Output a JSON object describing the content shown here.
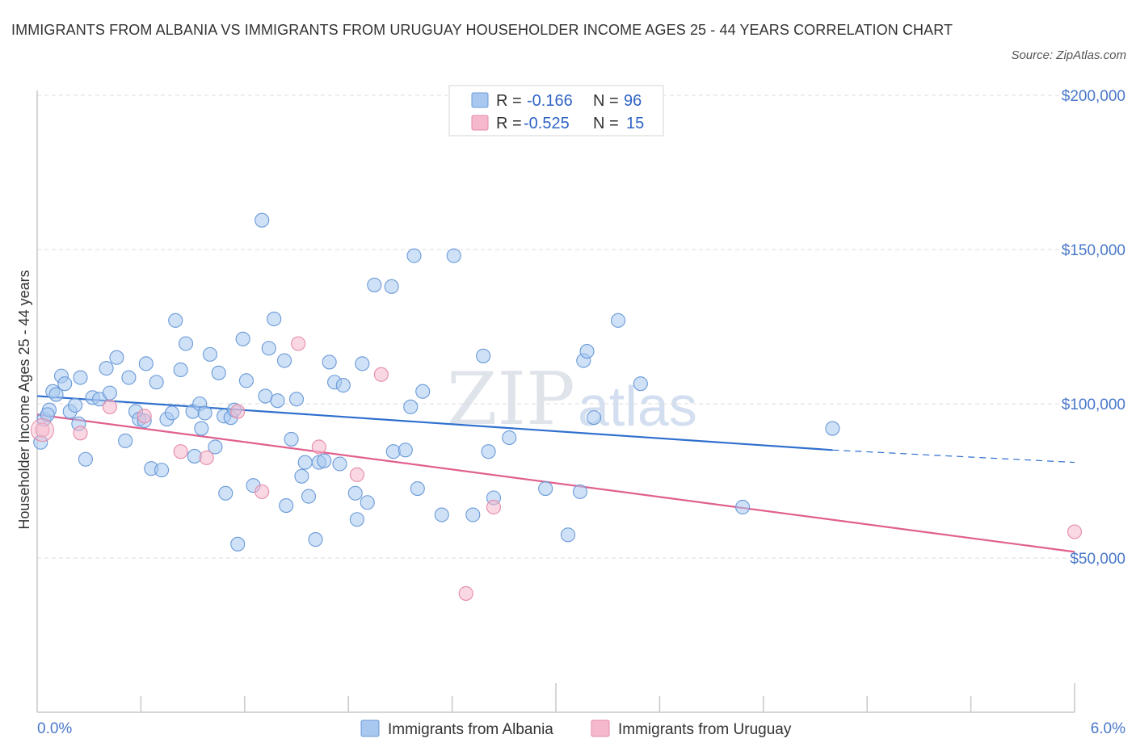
{
  "title": "IMMIGRANTS FROM ALBANIA VS IMMIGRANTS FROM URUGUAY HOUSEHOLDER INCOME AGES 25 - 44 YEARS CORRELATION CHART",
  "source": "Source: ZipAtlas.com",
  "watermark": {
    "zip": "ZIP",
    "atlas": "atlas"
  },
  "legend": {
    "rows": [
      {
        "r_label": "R =",
        "r_value": "-0.166",
        "n_label": "N =",
        "n_value": "96",
        "color": "#a8c8f0"
      },
      {
        "r_label": "R =",
        "r_value": "-0.525",
        "n_label": "N =",
        "n_value": "15",
        "color": "#f5b8cc"
      }
    ]
  },
  "chart_data": {
    "type": "scatter",
    "title": "IMMIGRANTS FROM ALBANIA VS IMMIGRANTS FROM URUGUAY HOUSEHOLDER INCOME AGES 25 - 44 YEARS CORRELATION CHART",
    "ylabel": "Householder Income Ages 25 - 44 years",
    "xlim": [
      0,
      6
    ],
    "ylim": [
      0,
      200000
    ],
    "x_tick_labels": {
      "left": "0.0%",
      "right": "6.0%"
    },
    "y_ticks": [
      {
        "value": 200000,
        "label": "$200,000"
      },
      {
        "value": 150000,
        "label": "$150,000"
      },
      {
        "value": 100000,
        "label": "$100,000"
      },
      {
        "value": 50000,
        "label": "$50,000"
      }
    ],
    "grid": true,
    "legend_position": "bottom",
    "series": [
      {
        "name": "Immigrants from Albania",
        "color": "#a8c8f0",
        "stroke": "#6a9ad8",
        "trend": {
          "x0": 0.0,
          "y0": 102500,
          "x1": 4.6,
          "y1": 85000,
          "dash_to_x": 6.0,
          "dash_to_y": 81000,
          "color": "#2f6fce"
        },
        "points": [
          [
            0.02,
            87500
          ],
          [
            0.04,
            95000
          ],
          [
            0.07,
            98000
          ],
          [
            0.09,
            104000
          ],
          [
            0.11,
            103000
          ],
          [
            0.14,
            109000
          ],
          [
            0.16,
            106500
          ],
          [
            0.19,
            97500
          ],
          [
            0.22,
            99500
          ],
          [
            0.25,
            108500
          ],
          [
            0.28,
            82000
          ],
          [
            0.32,
            102000
          ],
          [
            0.36,
            101500
          ],
          [
            0.4,
            111500
          ],
          [
            0.42,
            103500
          ],
          [
            0.46,
            115000
          ],
          [
            0.51,
            88000
          ],
          [
            0.53,
            108500
          ],
          [
            0.57,
            97500
          ],
          [
            0.59,
            95000
          ],
          [
            0.63,
            113000
          ],
          [
            0.66,
            79000
          ],
          [
            0.69,
            107000
          ],
          [
            0.72,
            78500
          ],
          [
            0.75,
            95000
          ],
          [
            0.78,
            97000
          ],
          [
            0.8,
            127000
          ],
          [
            0.83,
            111000
          ],
          [
            0.86,
            119500
          ],
          [
            0.9,
            97500
          ],
          [
            0.91,
            83000
          ],
          [
            0.94,
            100000
          ],
          [
            0.97,
            97000
          ],
          [
            1.0,
            116000
          ],
          [
            1.03,
            86000
          ],
          [
            1.05,
            110000
          ],
          [
            1.08,
            96000
          ],
          [
            1.09,
            71000
          ],
          [
            1.12,
            95500
          ],
          [
            1.14,
            98000
          ],
          [
            1.16,
            54500
          ],
          [
            1.19,
            121000
          ],
          [
            1.21,
            107500
          ],
          [
            1.25,
            73500
          ],
          [
            1.3,
            159500
          ],
          [
            1.32,
            102500
          ],
          [
            1.34,
            118000
          ],
          [
            1.37,
            127500
          ],
          [
            1.39,
            101000
          ],
          [
            1.43,
            114000
          ],
          [
            1.44,
            67000
          ],
          [
            1.47,
            88500
          ],
          [
            1.5,
            101500
          ],
          [
            1.53,
            76500
          ],
          [
            1.55,
            81000
          ],
          [
            1.57,
            70000
          ],
          [
            1.61,
            56000
          ],
          [
            1.63,
            81000
          ],
          [
            1.66,
            81500
          ],
          [
            1.69,
            113500
          ],
          [
            1.72,
            107000
          ],
          [
            1.75,
            80500
          ],
          [
            1.77,
            106000
          ],
          [
            1.84,
            71000
          ],
          [
            1.85,
            62500
          ],
          [
            1.88,
            113000
          ],
          [
            1.91,
            68000
          ],
          [
            1.95,
            138500
          ],
          [
            2.05,
            138000
          ],
          [
            2.06,
            84500
          ],
          [
            2.13,
            85000
          ],
          [
            2.16,
            99000
          ],
          [
            2.18,
            148000
          ],
          [
            2.2,
            72500
          ],
          [
            2.23,
            104000
          ],
          [
            2.34,
            64000
          ],
          [
            2.41,
            148000
          ],
          [
            2.52,
            64000
          ],
          [
            2.58,
            115500
          ],
          [
            2.61,
            84500
          ],
          [
            2.64,
            69500
          ],
          [
            2.73,
            89000
          ],
          [
            2.94,
            72500
          ],
          [
            3.07,
            57500
          ],
          [
            3.14,
            71500
          ],
          [
            3.16,
            114000
          ],
          [
            3.18,
            117000
          ],
          [
            3.22,
            95500
          ],
          [
            3.36,
            127000
          ],
          [
            3.49,
            106500
          ],
          [
            4.08,
            66500
          ],
          [
            4.6,
            92000
          ],
          [
            0.06,
            96500
          ],
          [
            0.24,
            93500
          ],
          [
            0.62,
            94500
          ],
          [
            0.95,
            92000
          ]
        ]
      },
      {
        "name": "Immigrants from Uruguay",
        "color": "#f5b8cc",
        "stroke": "#e68aa8",
        "trend": {
          "x0": 0.0,
          "y0": 96500,
          "x1": 6.0,
          "y1": 52000,
          "color": "#e0608e"
        },
        "points": [
          [
            0.03,
            91500
          ],
          [
            0.25,
            90500
          ],
          [
            0.42,
            99000
          ],
          [
            0.62,
            96000
          ],
          [
            0.83,
            84500
          ],
          [
            0.98,
            82500
          ],
          [
            1.16,
            97500
          ],
          [
            1.3,
            71500
          ],
          [
            1.51,
            119500
          ],
          [
            1.63,
            86000
          ],
          [
            1.85,
            77000
          ],
          [
            1.99,
            109500
          ],
          [
            2.48,
            38500
          ],
          [
            2.64,
            66500
          ],
          [
            6.0,
            58500
          ]
        ]
      }
    ]
  }
}
